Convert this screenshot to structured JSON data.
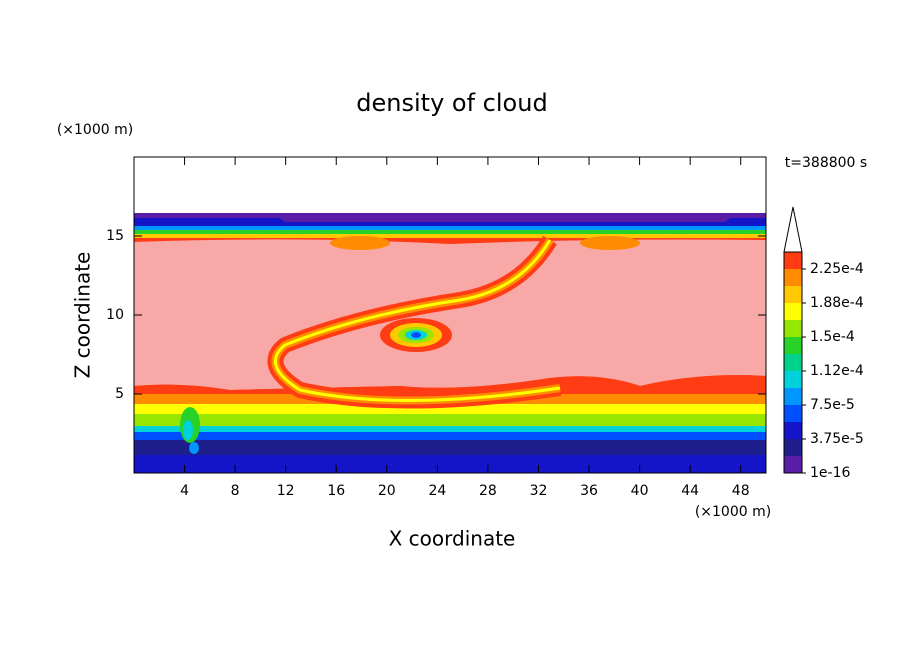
{
  "chart_data": {
    "type": "contour",
    "title": "density of cloud",
    "xlabel": "X coordinate",
    "ylabel": "Z coordinate",
    "x_unit": "(×1000 m)",
    "y_unit": "(×1000 m)",
    "annotation": "t=388800 s",
    "xlim": [
      0,
      50
    ],
    "ylim": [
      0,
      20
    ],
    "xticks": [
      4,
      8,
      12,
      16,
      20,
      24,
      28,
      32,
      36,
      40,
      44,
      48
    ],
    "yticks": [
      5,
      10,
      15
    ],
    "colorbar": {
      "lim": [
        0,
        0.00024375
      ],
      "ticks": [
        {
          "value": 1e-16,
          "label": "1e-16"
        },
        {
          "value": 3.75e-05,
          "label": "3.75e-5"
        },
        {
          "value": 7.5e-05,
          "label": "7.5e-5"
        },
        {
          "value": 0.0001125,
          "label": "1.12e-4"
        },
        {
          "value": 0.00015,
          "label": "1.5e-4"
        },
        {
          "value": 0.0001875,
          "label": "1.88e-4"
        },
        {
          "value": 0.000225,
          "label": "2.25e-4"
        }
      ],
      "colors": [
        "#5a1ea6",
        "#1e1e8c",
        "#1414c8",
        "#0050ff",
        "#0096ff",
        "#00d2dc",
        "#00d28c",
        "#28d228",
        "#96e600",
        "#ffff00",
        "#ffc800",
        "#ff8c00",
        "#ff3c14"
      ],
      "over_color": "#f9a8a8"
    }
  }
}
